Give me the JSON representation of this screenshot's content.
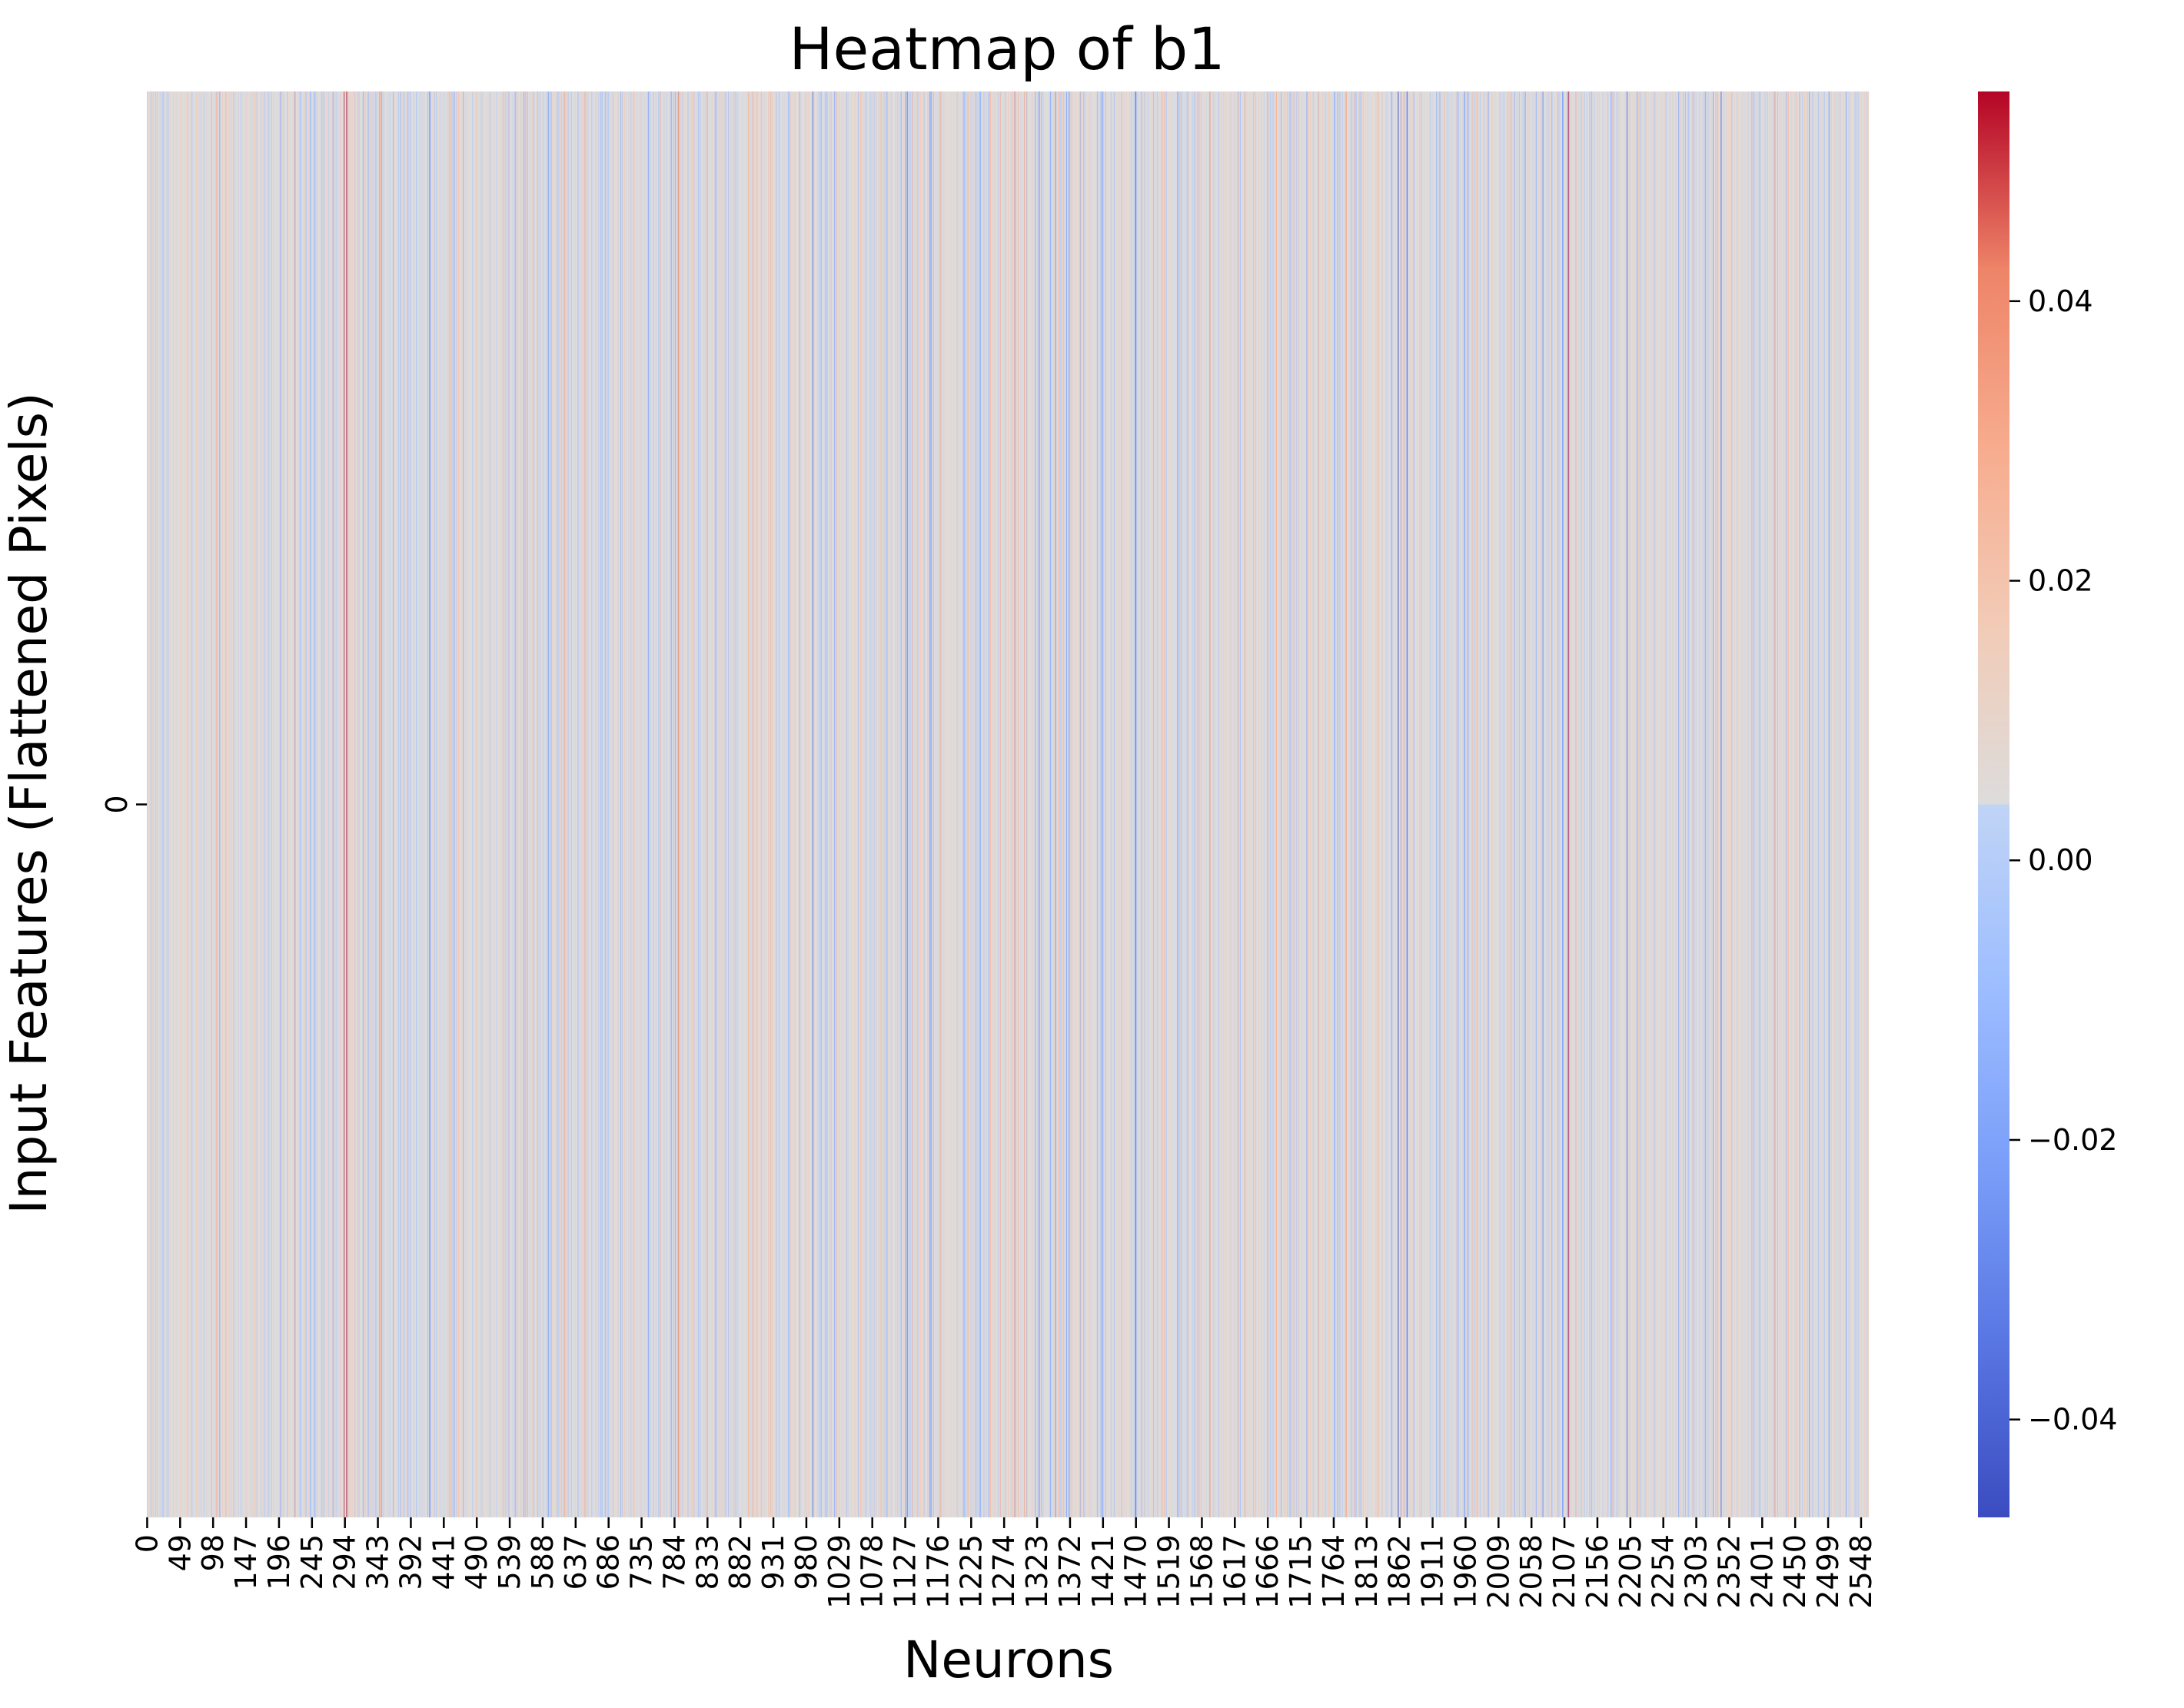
{
  "chart_data": {
    "type": "heatmap",
    "title": "Heatmap of b1",
    "xlabel": "Neurons",
    "ylabel": "Input Features (Flattened Pixels)",
    "x_range": [
      0,
      2560
    ],
    "y_ticks": [
      "0"
    ],
    "x_ticks": [
      "0",
      "49",
      "98",
      "147",
      "196",
      "245",
      "294",
      "343",
      "392",
      "441",
      "490",
      "539",
      "588",
      "637",
      "686",
      "735",
      "784",
      "833",
      "882",
      "931",
      "980",
      "1029",
      "1078",
      "1127",
      "1176",
      "1225",
      "1274",
      "1323",
      "1372",
      "1421",
      "1470",
      "1519",
      "1568",
      "1617",
      "1666",
      "1715",
      "1764",
      "1813",
      "1862",
      "1911",
      "1960",
      "2009",
      "2058",
      "2107",
      "2156",
      "2205",
      "2254",
      "2303",
      "2352",
      "2401",
      "2450",
      "2499",
      "2548"
    ],
    "colormap": "coolwarm",
    "colorbar": {
      "vmin": -0.047,
      "vmax": 0.055,
      "ticks": [
        "0.04",
        "0.02",
        "0.00",
        "−0.02",
        "−0.04"
      ],
      "tick_values": [
        0.04,
        0.02,
        0.0,
        -0.02,
        -0.04
      ]
    },
    "strong_values": [
      {
        "x": 293,
        "value": 0.052
      },
      {
        "x": 296,
        "value": 0.045
      },
      {
        "x": 346,
        "value": 0.04
      },
      {
        "x": 420,
        "value": -0.035
      },
      {
        "x": 620,
        "value": 0.035
      },
      {
        "x": 790,
        "value": 0.04
      },
      {
        "x": 990,
        "value": -0.04
      },
      {
        "x": 1130,
        "value": -0.035
      },
      {
        "x": 1470,
        "value": -0.045
      },
      {
        "x": 1580,
        "value": 0.04
      },
      {
        "x": 1860,
        "value": -0.045
      },
      {
        "x": 1873,
        "value": -0.047
      },
      {
        "x": 2075,
        "value": -0.03
      },
      {
        "x": 2113,
        "value": 0.05
      },
      {
        "x": 2200,
        "value": -0.04
      },
      {
        "x": 2340,
        "value": -0.04
      },
      {
        "x": 2420,
        "value": 0.035
      }
    ]
  }
}
